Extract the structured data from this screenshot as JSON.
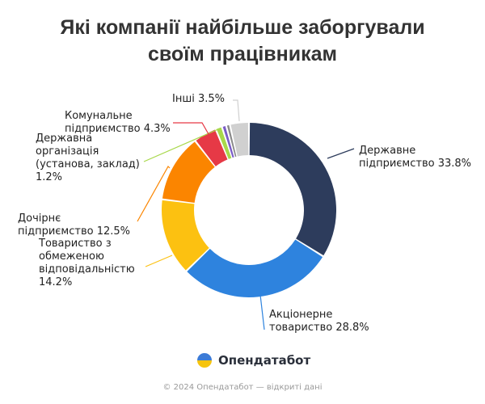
{
  "title_lines": [
    "Які компанії найбільше заборгували",
    "своїм працівникам"
  ],
  "brand": {
    "name": "Опендатабот"
  },
  "footer": "© 2024 Опендатабот — відкриті дані",
  "chart_data": {
    "type": "pie",
    "variant": "donut",
    "title": "Які компанії найбільше заборгували своїм працівникам",
    "slices": [
      {
        "name_lines": [
          "Державне",
          "підприємство"
        ],
        "value": 33.8,
        "color": "#2d3c5c"
      },
      {
        "name_lines": [
          "Акціонерне",
          "товариство"
        ],
        "value": 28.8,
        "color": "#2e83de"
      },
      {
        "name_lines": [
          "Товариство з",
          "обмеженою",
          "відповідальністю"
        ],
        "value": 14.2,
        "color": "#fcc111"
      },
      {
        "name_lines": [
          "Дочірнє",
          "підприємство"
        ],
        "value": 12.5,
        "color": "#fb8500"
      },
      {
        "name_lines": [
          "Державна",
          "організація",
          "(установа, заклад)"
        ],
        "value": 1.2,
        "color": "#a8d84b"
      },
      {
        "name_lines": [
          "Комунальне",
          "підприємство"
        ],
        "value": 4.3,
        "color": "#e63946"
      },
      {
        "name_lines": [
          "Інші"
        ],
        "value": 3.5,
        "color": "#d0d0d0"
      }
    ],
    "small_unlabeled_slices": [
      {
        "value": 0.8,
        "color": "#7a5cc7"
      },
      {
        "value": 0.7,
        "color": "#8a8a8a"
      }
    ],
    "value_suffix": "%",
    "legend": "none"
  }
}
